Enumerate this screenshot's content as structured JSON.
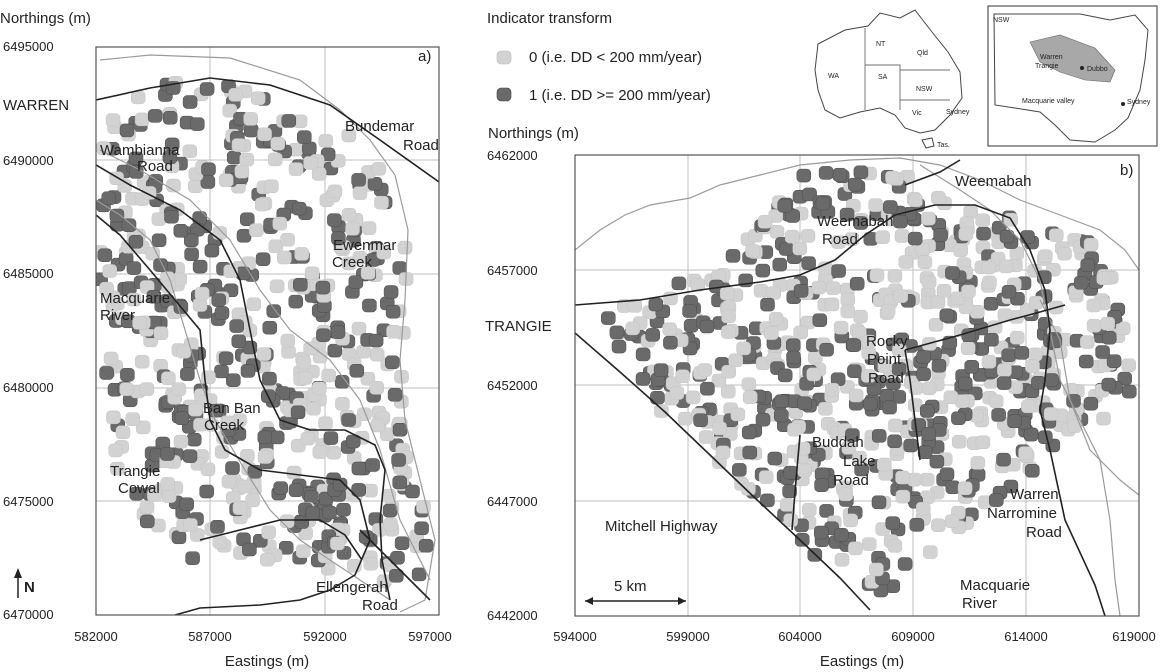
{
  "legend": {
    "title": "Indicator transform",
    "items": [
      {
        "label": "0 (i.e. DD   < 200 mm/year)",
        "color": "#d2d2d2"
      },
      {
        "label": "1 (i.e. DD >= 200 mm/year)",
        "color": "#6a6a6a"
      }
    ]
  },
  "inset_australia": {
    "regions": [
      "WA",
      "NT",
      "Qld",
      "SA",
      "NSW",
      "Vic",
      "Tas.",
      "Sydney"
    ]
  },
  "inset_nsw": {
    "labels": [
      "NSW",
      "Warren",
      "Trangie",
      "Dubbo",
      "Macquarie valley",
      "Sydney"
    ]
  },
  "map_a": {
    "panel": "a)",
    "y_axis_label": "Northings (m)",
    "x_axis_label": "Eastings (m)",
    "x_ticks": [
      "582000",
      "587000",
      "592000",
      "597000"
    ],
    "y_ticks": [
      "6495000",
      "6490000",
      "6485000",
      "6480000",
      "6475000",
      "6470000"
    ],
    "x_range": [
      582000,
      597000
    ],
    "y_range": [
      6470000,
      6495000
    ],
    "north_label": "N",
    "place_labels": {
      "town": "WARREN",
      "bundemar1": "Bundemar",
      "bundemar2": "Road",
      "wambianna1": "Wambianna",
      "wambianna2": "Road",
      "ewenmar1": "Ewenmar",
      "ewenmar2": "Creek",
      "macq1": "Macquarie",
      "macq2": "River",
      "banban1": "Ban Ban",
      "banban2": "Creek",
      "trangie1": "Trangie",
      "trangie2": "Cowal",
      "ellen1": "Ellengerah",
      "ellen2": "Road"
    }
  },
  "map_b": {
    "panel": "b)",
    "y_axis_label": "Northings (m)",
    "x_axis_label": "Eastings (m)",
    "x_ticks": [
      "594000",
      "599000",
      "604000",
      "609000",
      "614000",
      "619000"
    ],
    "y_ticks": [
      "6462000",
      "6457000",
      "6452000",
      "6447000",
      "6442000"
    ],
    "x_range": [
      594000,
      619000
    ],
    "y_range": [
      6442000,
      6462000
    ],
    "scale_bar": "5 km",
    "place_labels": {
      "town": "TRANGIE",
      "weemabah": "Weemabah",
      "wroad1": "Weemabah",
      "wroad2": "Road",
      "rocky1": "Rocky",
      "rocky2": "Point",
      "rocky3": "Road",
      "buddah1": "Buddah",
      "buddah2": "Lake",
      "buddah3": "Road",
      "warren1": "Warren",
      "warren2": "Narromine",
      "warren3": "Road",
      "mitchell": "Mitchell Highway",
      "macq1": "Macquarie",
      "macq2": "River"
    }
  }
}
